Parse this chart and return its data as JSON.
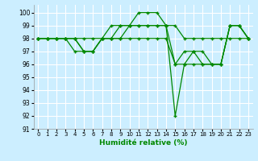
{
  "title": "",
  "xlabel": "Humidité relative (%)",
  "ylabel": "",
  "background_color": "#cceeff",
  "grid_color": "#ffffff",
  "line_color": "#008800",
  "xlim": [
    -0.5,
    23.5
  ],
  "ylim": [
    91,
    100.6
  ],
  "yticks": [
    91,
    92,
    93,
    94,
    95,
    96,
    97,
    98,
    99,
    100
  ],
  "xticks": [
    0,
    1,
    2,
    3,
    4,
    5,
    6,
    7,
    8,
    9,
    10,
    11,
    12,
    13,
    14,
    15,
    16,
    17,
    18,
    19,
    20,
    21,
    22,
    23
  ],
  "series": [
    [
      98,
      98,
      98,
      98,
      98,
      97,
      97,
      98,
      98,
      99,
      99,
      100,
      100,
      100,
      99,
      96,
      97,
      97,
      97,
      96,
      96,
      99,
      99,
      98
    ],
    [
      98,
      98,
      98,
      98,
      98,
      98,
      98,
      98,
      99,
      99,
      99,
      99,
      99,
      99,
      99,
      99,
      98,
      98,
      98,
      98,
      98,
      98,
      98,
      98
    ],
    [
      98,
      98,
      98,
      98,
      97,
      97,
      97,
      98,
      98,
      98,
      98,
      98,
      98,
      98,
      98,
      96,
      96,
      96,
      96,
      96,
      96,
      99,
      99,
      98
    ],
    [
      98,
      98,
      98,
      98,
      98,
      97,
      97,
      98,
      98,
      98,
      99,
      99,
      99,
      99,
      99,
      92,
      96,
      97,
      96,
      96,
      96,
      99,
      99,
      98
    ]
  ]
}
